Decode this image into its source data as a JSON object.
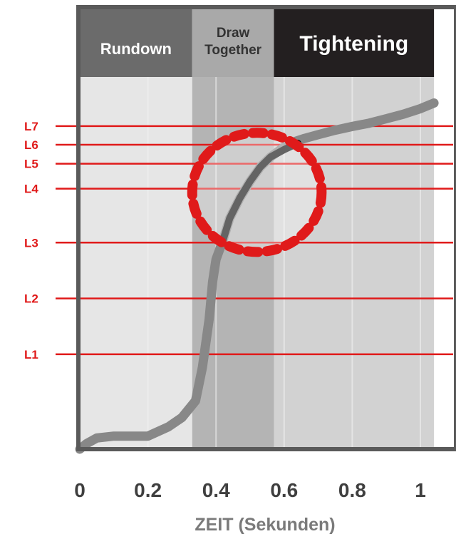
{
  "chart_data": {
    "type": "line",
    "title": "",
    "xlabel": "ZEIT (Sekunden)",
    "ylabel": "",
    "xlim": [
      0,
      1.04
    ],
    "ylim": [
      0,
      1
    ],
    "x_ticks": [
      0,
      0.2,
      0.4,
      0.6,
      0.8,
      1
    ],
    "x_tick_labels": [
      "0",
      "0.2",
      "0.4",
      "0.6",
      "0.8",
      "1"
    ],
    "grid": true,
    "phases": [
      {
        "label": "Rundown",
        "x_start": 0,
        "x_end": 0.33,
        "header_color": "#6b6b6b",
        "band_color": "#e6e6e6",
        "text_color": "#ffffff"
      },
      {
        "label": "Draw Together",
        "x_start": 0.33,
        "x_end": 0.57,
        "header_color": "#a9a9a9",
        "band_color": "#b4b4b4",
        "text_color": "#333333"
      },
      {
        "label": "Tightening",
        "x_start": 0.57,
        "x_end": 1.04,
        "header_color": "#231f20",
        "band_color": "#d2d2d2",
        "text_color": "#ffffff"
      }
    ],
    "levels": [
      {
        "name": "L1",
        "y": 0.255
      },
      {
        "name": "L2",
        "y": 0.405
      },
      {
        "name": "L3",
        "y": 0.555
      },
      {
        "name": "L4",
        "y": 0.7
      },
      {
        "name": "L5",
        "y": 0.767
      },
      {
        "name": "L6",
        "y": 0.818
      },
      {
        "name": "L7",
        "y": 0.868
      }
    ],
    "series": [
      {
        "color": "#888888",
        "x": [
          0,
          0.02,
          0.05,
          0.1,
          0.2,
          0.26,
          0.3,
          0.34,
          0.36,
          0.38,
          0.39,
          0.4,
          0.41,
          0.42,
          0.44,
          0.47,
          0.5,
          0.53,
          0.56,
          0.6,
          0.63,
          0.66,
          0.7,
          0.75,
          0.8,
          0.85,
          0.9,
          0.95,
          1.0,
          1.04
        ],
        "y": [
          0.0,
          0.015,
          0.03,
          0.035,
          0.035,
          0.06,
          0.085,
          0.13,
          0.22,
          0.35,
          0.45,
          0.51,
          0.535,
          0.56,
          0.62,
          0.675,
          0.72,
          0.758,
          0.785,
          0.812,
          0.826,
          0.835,
          0.845,
          0.857,
          0.867,
          0.876,
          0.888,
          0.9,
          0.915,
          0.93
        ]
      },
      {
        "color": "#111111",
        "x": [
          0.42,
          0.44,
          0.47,
          0.5,
          0.53,
          0.56,
          0.6,
          0.64
        ],
        "y": [
          0.56,
          0.62,
          0.675,
          0.72,
          0.758,
          0.785,
          0.805,
          0.822
        ]
      }
    ],
    "highlight_circle": {
      "cx": 0.52,
      "cy": 0.69,
      "rx": 0.19,
      "ry": 0.16,
      "color": "#e01a1a",
      "style": "dotted"
    }
  }
}
